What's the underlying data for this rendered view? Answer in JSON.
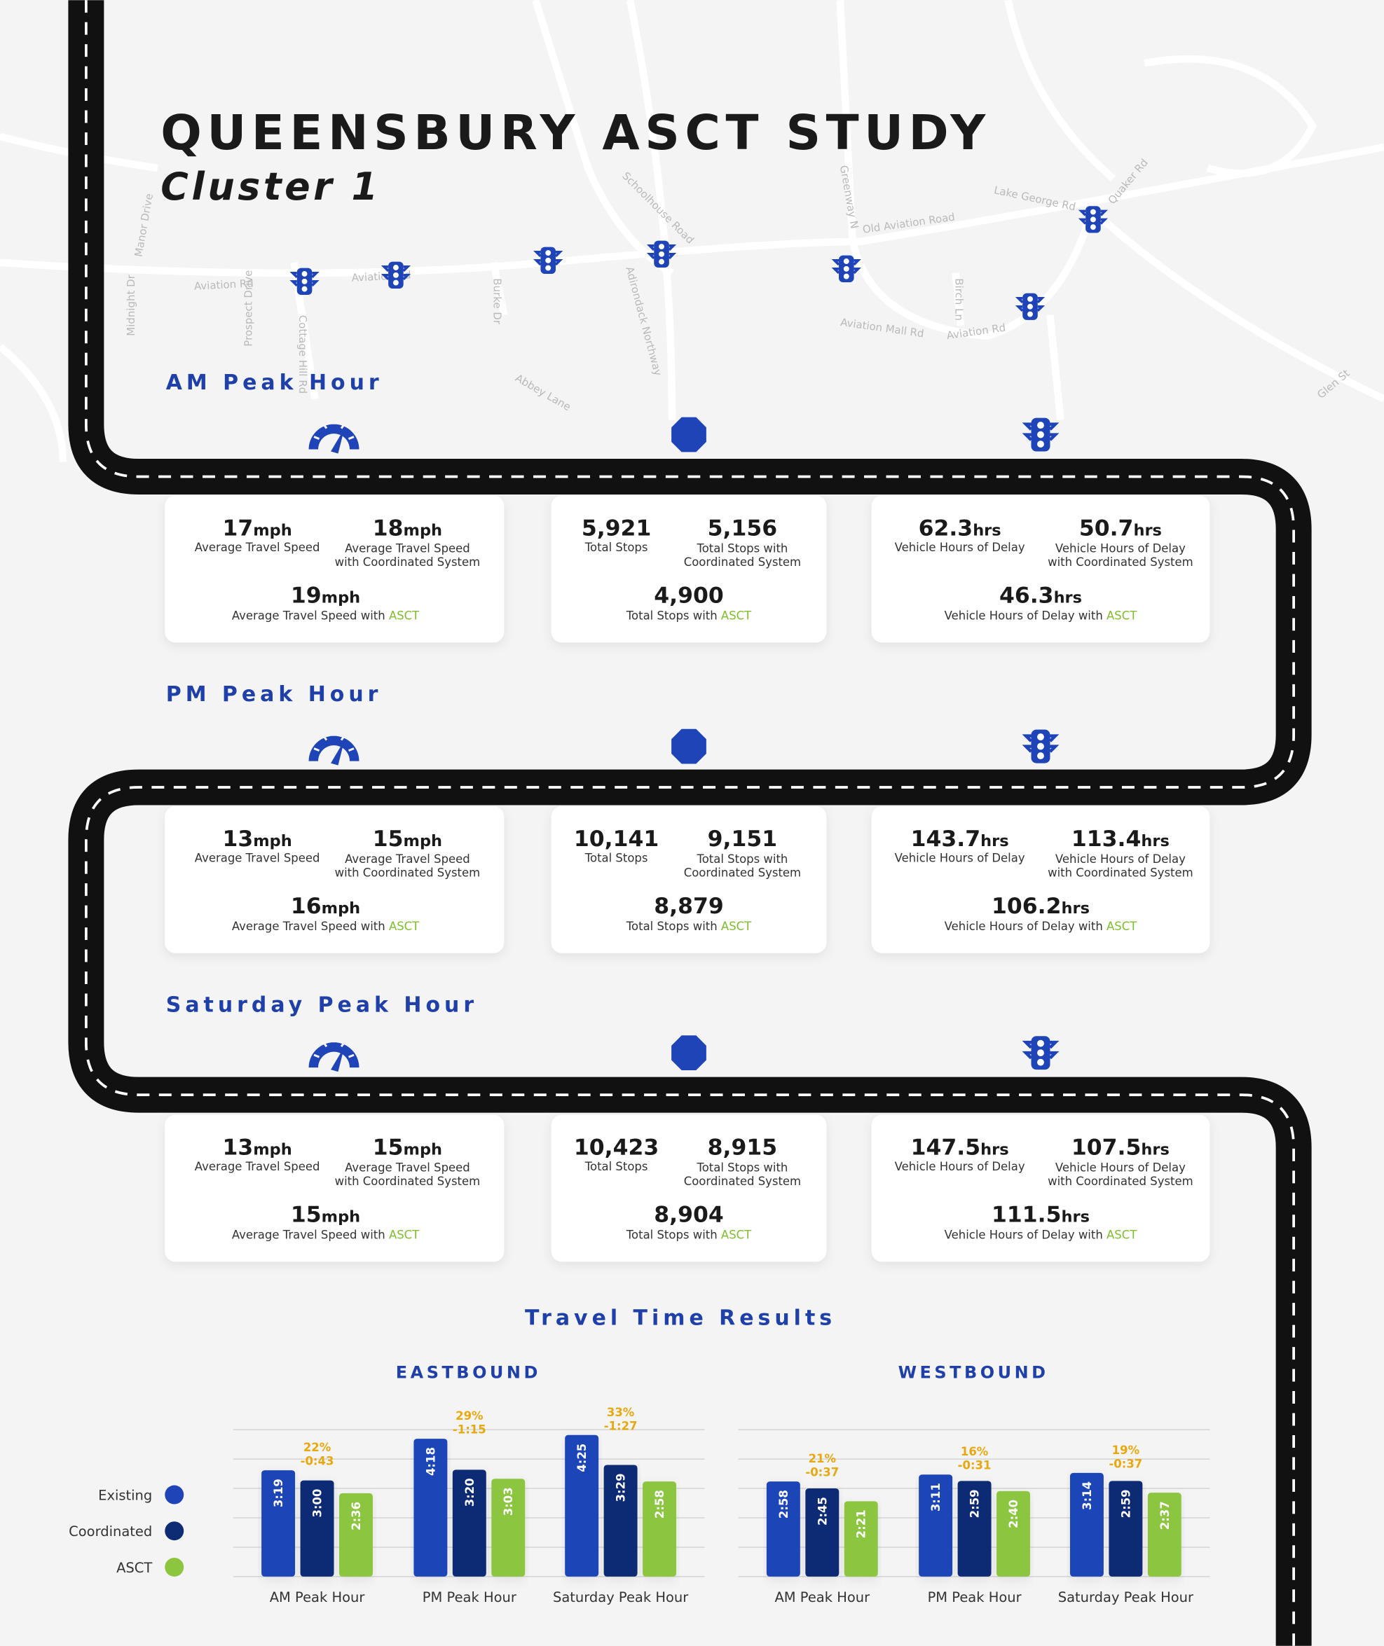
{
  "header": {
    "title": "QUEENSBURY ASCT STUDY",
    "subtitle": "Cluster 1"
  },
  "map": {
    "labels": [
      "Aviation Rd",
      "Aviation Rd",
      "Old Aviation Road",
      "Lake George Rd",
      "Schoolhouse Road",
      "Adirondack Northway",
      "Greenway N",
      "Birch Ln",
      "Aviation Mall Rd",
      "Aviation Rd",
      "Burke Dr",
      "Manor Drive",
      "Prospect Drive",
      "Midnight Dr",
      "Cottage Hill Rd",
      "Quaker Rd",
      "Abbey Lane",
      "Glen St"
    ]
  },
  "units": {
    "speed": "mph",
    "delay": "hrs"
  },
  "labels": {
    "speed": [
      [
        "Average Travel Speed"
      ],
      [
        "Average Travel Speed",
        "with Coordinated System"
      ],
      [
        "Average Travel Speed with"
      ]
    ],
    "stops": [
      [
        "Total Stops"
      ],
      [
        "Total Stops with",
        "Coordinated System"
      ],
      [
        "Total Stops with"
      ]
    ],
    "delay": [
      [
        "Vehicle Hours of Delay"
      ],
      [
        "Vehicle Hours of Delay",
        "with Coordinated System"
      ],
      [
        "Vehicle Hours of Delay with"
      ]
    ],
    "asct": "ASCT"
  },
  "periods": [
    {
      "title": "AM Peak Hour",
      "speed": [
        "17",
        "18",
        "19"
      ],
      "stops": [
        "5,921",
        "5,156",
        "4,900"
      ],
      "delay": [
        "62.3",
        "50.7",
        "46.3"
      ]
    },
    {
      "title": "PM Peak Hour",
      "speed": [
        "13",
        "15",
        "16"
      ],
      "stops": [
        "10,141",
        "9,151",
        "8,879"
      ],
      "delay": [
        "143.7",
        "113.4",
        "106.2"
      ]
    },
    {
      "title": "Saturday Peak Hour",
      "speed": [
        "13",
        "15",
        "15"
      ],
      "stops": [
        "10,423",
        "8,915",
        "8,904"
      ],
      "delay": [
        "147.5",
        "107.5",
        "111.5"
      ]
    }
  ],
  "travel_time": {
    "title": "Travel Time Results"
  },
  "chart_data": [
    {
      "type": "bar",
      "title": "EASTBOUND",
      "categories": [
        "AM Peak Hour",
        "PM Peak Hour",
        "Saturday Peak Hour"
      ],
      "series": [
        {
          "name": "Existing",
          "color": "#1e44b8",
          "values": [
            199,
            258,
            265
          ],
          "value_labels": [
            "3:19",
            "4:18",
            "4:25"
          ]
        },
        {
          "name": "Coordinated",
          "color": "#0d2c74",
          "values": [
            180,
            200,
            209
          ],
          "value_labels": [
            "3:00",
            "3:20",
            "3:29"
          ]
        },
        {
          "name": "ASCT",
          "color": "#8cc63f",
          "values": [
            156,
            183,
            178
          ],
          "value_labels": [
            "2:36",
            "3:03",
            "2:58"
          ]
        }
      ],
      "gain_labels": [
        "22%",
        "29%",
        "33%"
      ],
      "saving_labels": [
        "-0:43",
        "-1:15",
        "-1:27"
      ],
      "ylim": [
        0,
        275
      ],
      "yticks": [
        0,
        55,
        110,
        165,
        220,
        275
      ],
      "grid": true
    },
    {
      "type": "bar",
      "title": "WESTBOUND",
      "categories": [
        "AM Peak Hour",
        "PM Peak Hour",
        "Saturday Peak Hour"
      ],
      "series": [
        {
          "name": "Existing",
          "color": "#1e44b8",
          "values": [
            178,
            191,
            194
          ],
          "value_labels": [
            "2:58",
            "3:11",
            "3:14"
          ]
        },
        {
          "name": "Coordinated",
          "color": "#0d2c74",
          "values": [
            165,
            179,
            179
          ],
          "value_labels": [
            "2:45",
            "2:59",
            "2:59"
          ]
        },
        {
          "name": "ASCT",
          "color": "#8cc63f",
          "values": [
            141,
            160,
            157
          ],
          "value_labels": [
            "2:21",
            "2:40",
            "2:37"
          ]
        }
      ],
      "gain_labels": [
        "21%",
        "16%",
        "19%"
      ],
      "saving_labels": [
        "-0:37",
        "-0:31",
        "-0:37"
      ],
      "ylim": [
        0,
        275
      ],
      "yticks": [
        0,
        55,
        110,
        165,
        220,
        275
      ],
      "grid": true
    }
  ]
}
